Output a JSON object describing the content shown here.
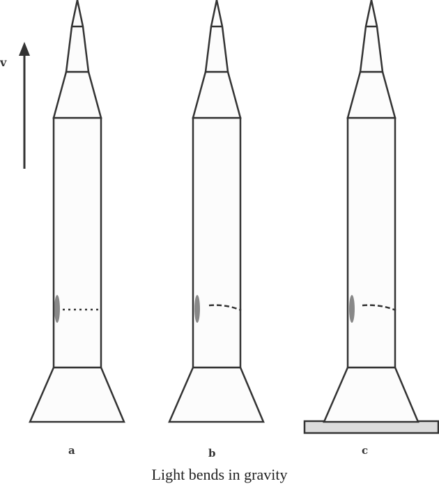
{
  "velocity_label": "v",
  "panels": [
    {
      "label": "a",
      "light_path": "straight"
    },
    {
      "label": "b",
      "light_path": "bent"
    },
    {
      "label": "c",
      "light_path": "bent",
      "on_ground": true
    }
  ],
  "caption": "Light bends in gravity",
  "colors": {
    "outline": "#333333",
    "rocket_fill": "#fcfcfc",
    "light_source": "#888888",
    "ground_fill": "#dcdcdc"
  }
}
